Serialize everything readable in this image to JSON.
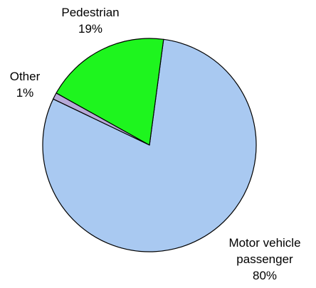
{
  "chart_data": {
    "type": "pie",
    "categories": [
      "Motor vehicle passenger",
      "Other",
      "Pedestrian"
    ],
    "values": [
      80,
      1,
      19
    ],
    "value_labels": [
      "80%",
      "1%",
      "19%"
    ],
    "colors": [
      "#a9c9f1",
      "#b7a9d8",
      "#1ef51e"
    ]
  }
}
